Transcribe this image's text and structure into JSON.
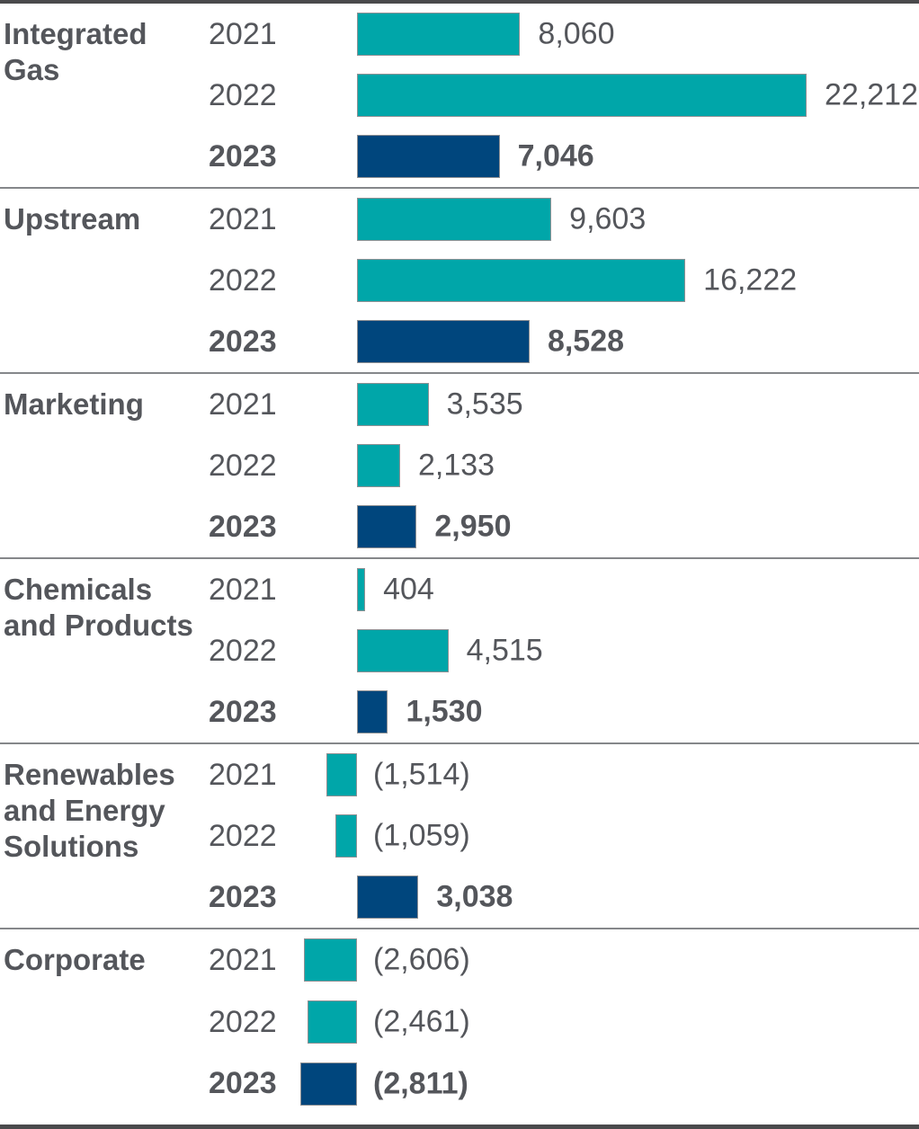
{
  "colors": {
    "prior_year_bar": "#00a6a9",
    "current_year_bar": "#00467d",
    "text": "#54565b",
    "section_divider": "#85878a",
    "frame_border": "#4a4a4c"
  },
  "chart_data": {
    "type": "bar",
    "orientation": "horizontal",
    "highlight_year": "2023",
    "value_axis_max": 22212,
    "negative_format": "parentheses",
    "grid": false,
    "legend": false,
    "segments": [
      {
        "name": "Integrated Gas",
        "rows": [
          {
            "year": "2021",
            "value": 8060,
            "label": "8,060"
          },
          {
            "year": "2022",
            "value": 22212,
            "label": "22,212"
          },
          {
            "year": "2023",
            "value": 7046,
            "label": "7,046"
          }
        ]
      },
      {
        "name": "Upstream",
        "rows": [
          {
            "year": "2021",
            "value": 9603,
            "label": "9,603"
          },
          {
            "year": "2022",
            "value": 16222,
            "label": "16,222"
          },
          {
            "year": "2023",
            "value": 8528,
            "label": "8,528"
          }
        ]
      },
      {
        "name": "Marketing",
        "rows": [
          {
            "year": "2021",
            "value": 3535,
            "label": "3,535"
          },
          {
            "year": "2022",
            "value": 2133,
            "label": "2,133"
          },
          {
            "year": "2023",
            "value": 2950,
            "label": "2,950"
          }
        ]
      },
      {
        "name": "Chemicals and Products",
        "rows": [
          {
            "year": "2021",
            "value": 404,
            "label": "404"
          },
          {
            "year": "2022",
            "value": 4515,
            "label": "4,515"
          },
          {
            "year": "2023",
            "value": 1530,
            "label": "1,530"
          }
        ]
      },
      {
        "name": "Renewables and Energy Solutions",
        "rows": [
          {
            "year": "2021",
            "value": -1514,
            "label": "(1,514)"
          },
          {
            "year": "2022",
            "value": -1059,
            "label": "(1,059)"
          },
          {
            "year": "2023",
            "value": 3038,
            "label": "3,038"
          }
        ]
      },
      {
        "name": "Corporate",
        "rows": [
          {
            "year": "2021",
            "value": -2606,
            "label": "(2,606)"
          },
          {
            "year": "2022",
            "value": -2461,
            "label": "(2,461)"
          },
          {
            "year": "2023",
            "value": -2811,
            "label": "(2,811)"
          }
        ]
      }
    ]
  }
}
